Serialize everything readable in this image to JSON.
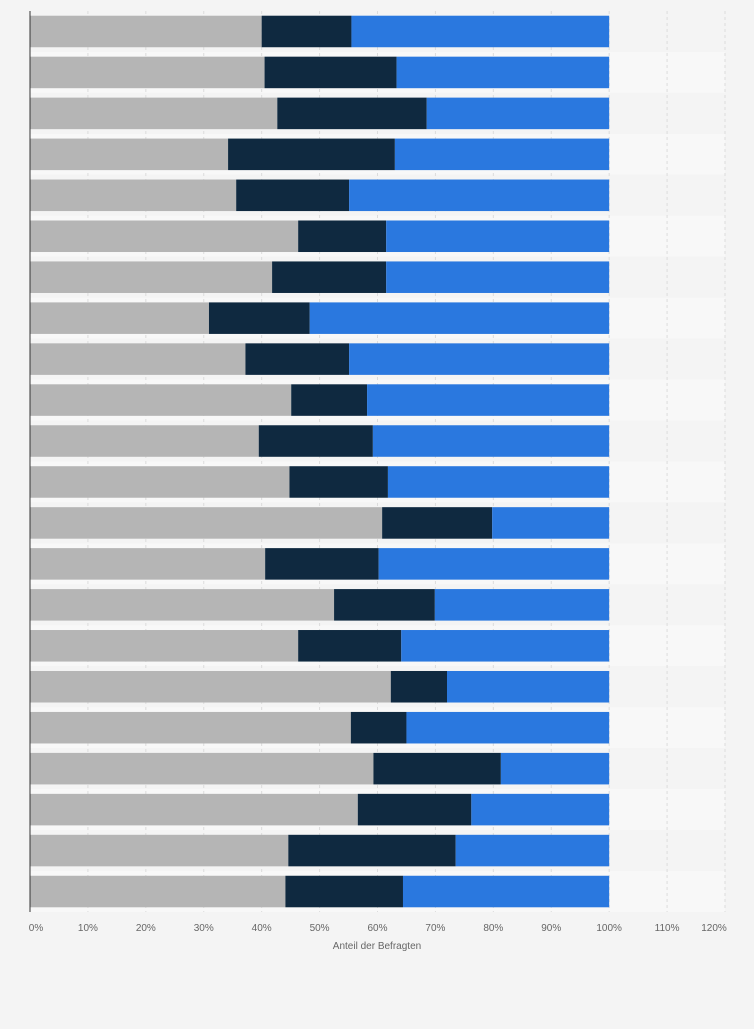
{
  "chart_data": {
    "type": "bar",
    "orientation": "horizontal",
    "stacked": true,
    "xlabel": "Anteil der Befragten",
    "xlim": [
      0,
      120
    ],
    "x_ticks": [
      "0%",
      "10%",
      "20%",
      "30%",
      "40%",
      "50%",
      "60%",
      "70%",
      "80%",
      "90%",
      "100%",
      "110%",
      "120%"
    ],
    "grid": true,
    "legend": "none",
    "categories": [
      "",
      "",
      "",
      "",
      "",
      "",
      "",
      "",
      "",
      "",
      "",
      "",
      "",
      "",
      "",
      "",
      "",
      "",
      "",
      "",
      "",
      ""
    ],
    "series": [
      {
        "color": "#b5b5b5",
        "values": [
          40,
          40.5,
          42.7,
          34.2,
          35.6,
          46.3,
          41.8,
          30.9,
          37.2,
          45.1,
          39.5,
          44.8,
          60.8,
          40.6,
          52.5,
          46.3,
          62.3,
          55.4,
          59.3,
          56.6,
          44.6,
          44.1
        ]
      },
      {
        "color": "#0f2940",
        "values": [
          15.5,
          22.8,
          25.8,
          28.8,
          19.5,
          15.2,
          19.7,
          17.4,
          17.9,
          13.1,
          19.7,
          17.0,
          19.0,
          19.6,
          17.4,
          17.8,
          9.7,
          9.6,
          22.0,
          19.6,
          28.9,
          20.3
        ]
      },
      {
        "color": "#2a78df",
        "values": [
          44.5,
          36.7,
          31.5,
          37.0,
          44.9,
          38.5,
          38.5,
          51.7,
          44.9,
          41.8,
          40.8,
          38.2,
          20.2,
          39.8,
          30.1,
          35.9,
          28.0,
          35.0,
          18.7,
          23.8,
          26.5,
          35.6
        ]
      }
    ]
  }
}
